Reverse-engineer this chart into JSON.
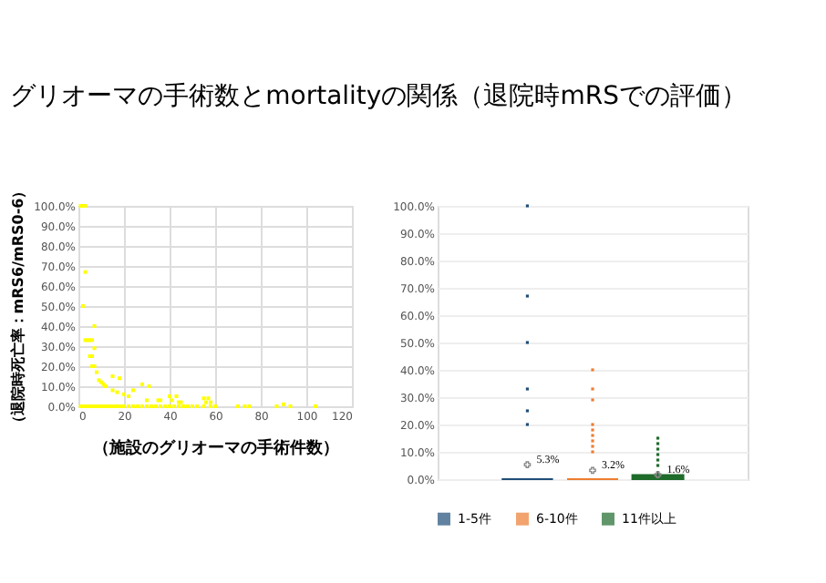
{
  "chart_data": [
    {
      "type": "scatter",
      "title": "グリオーマの手術数とmortalityの関係（退院時mRSでの評価）",
      "xlabel": "（施設のグリオーマの手術件数）",
      "ylabel": "（退院時死亡率：mRS6/mRS0-6）",
      "series": [
        {
          "color": "#ffff00",
          "x": [
            1,
            2,
            3,
            3,
            2,
            3,
            4,
            5,
            6,
            7,
            5,
            6,
            6,
            7,
            7,
            8,
            9,
            10,
            11,
            12,
            15,
            15,
            18,
            17,
            20,
            22,
            24,
            28,
            31,
            30,
            35,
            36,
            40,
            41,
            43,
            44,
            45,
            55,
            56,
            57,
            58,
            90,
            1,
            2,
            3,
            4,
            5,
            6,
            7,
            8,
            9,
            10,
            11,
            12,
            13,
            14,
            15,
            16,
            17,
            18,
            19,
            20,
            22,
            24,
            26,
            28,
            30,
            32,
            34,
            36,
            38,
            40,
            42,
            44,
            46,
            48,
            50,
            52,
            55,
            58,
            60,
            70,
            73,
            75,
            87,
            93,
            104
          ],
          "values": [
            100,
            100,
            100,
            67,
            50,
            33,
            33,
            33,
            33,
            40,
            25,
            25,
            20,
            20,
            29,
            17,
            13,
            12,
            11,
            10,
            8,
            15,
            14,
            7,
            6,
            5,
            8,
            11,
            10,
            3,
            3,
            3,
            5,
            3,
            5,
            2,
            2,
            4,
            2,
            4,
            2,
            1,
            0,
            0,
            0,
            0,
            0,
            0,
            0,
            0,
            0,
            0,
            0,
            0,
            0,
            0,
            0,
            0,
            0,
            0,
            0,
            0,
            0,
            0,
            0,
            0,
            0,
            0,
            0,
            0,
            0,
            0,
            0,
            0,
            0,
            0,
            0,
            0,
            0,
            0,
            0,
            0,
            0,
            0,
            0,
            0,
            0
          ]
        }
      ],
      "xlim": [
        0,
        120
      ],
      "xticks": [
        0,
        20,
        40,
        60,
        80,
        100,
        120
      ],
      "ylim": [
        0,
        100
      ],
      "yticks": [
        {
          "value": 0,
          "label": "0.0%"
        },
        {
          "value": 10,
          "label": "10.0%"
        },
        {
          "value": 20,
          "label": "20.0%"
        },
        {
          "value": 30,
          "label": "30.0%"
        },
        {
          "value": 40,
          "label": "40.0%"
        },
        {
          "value": 50,
          "label": "50.0%"
        },
        {
          "value": 60,
          "label": "60.0%"
        },
        {
          "value": 70,
          "label": "70.0%"
        },
        {
          "value": 80,
          "label": "80.0%"
        },
        {
          "value": 90,
          "label": "90.0%"
        },
        {
          "value": 100,
          "label": "100.0%"
        }
      ],
      "grid": true,
      "marker": "square"
    },
    {
      "type": "box",
      "categories": [
        null
      ],
      "series": [
        {
          "name": "1-5件",
          "color": "#1f4e79",
          "boxes": [
            {
              "low": 0,
              "q1": 0,
              "median": 0,
              "q3": 0,
              "high": 0,
              "mean": 5.3,
              "outliers": [
                20,
                25,
                33,
                50,
                67,
                100
              ]
            }
          ]
        },
        {
          "name": "6-10件",
          "color": "#ed7d31",
          "boxes": [
            {
              "low": 0,
              "q1": 0,
              "median": 0,
              "q3": 0,
              "high": 0,
              "mean": 3.2,
              "outliers": [
                10,
                12,
                14,
                16,
                18,
                20,
                29,
                33,
                40
              ]
            }
          ]
        },
        {
          "name": "11件以上",
          "color": "#1e6b2b",
          "boxes": [
            {
              "low": 0,
              "q1": 0,
              "median": 0,
              "q3": 1.5,
              "high": 3,
              "mean": 1.6,
              "outliers": [
                5,
                7,
                9,
                11,
                13,
                15
              ]
            }
          ]
        }
      ],
      "annotations": [
        "5.3%",
        "3.2%",
        "1.6%"
      ],
      "ylim": [
        0,
        100
      ],
      "yticks": [
        {
          "value": 0,
          "label": "0.0%"
        },
        {
          "value": 10,
          "label": "10.0%"
        },
        {
          "value": 20,
          "label": "20.0%"
        },
        {
          "value": 30,
          "label": "30.0%"
        },
        {
          "value": 40,
          "label": "40.0%"
        },
        {
          "value": 50,
          "label": "50.0%"
        },
        {
          "value": 60,
          "label": "60.0%"
        },
        {
          "value": 70,
          "label": "70.0%"
        },
        {
          "value": 80,
          "label": "80.0%"
        },
        {
          "value": 90,
          "label": "90.0%"
        },
        {
          "value": 100,
          "label": "100.0%"
        }
      ],
      "grid": "y",
      "legend": "bottom",
      "tick_labels": "y"
    }
  ]
}
